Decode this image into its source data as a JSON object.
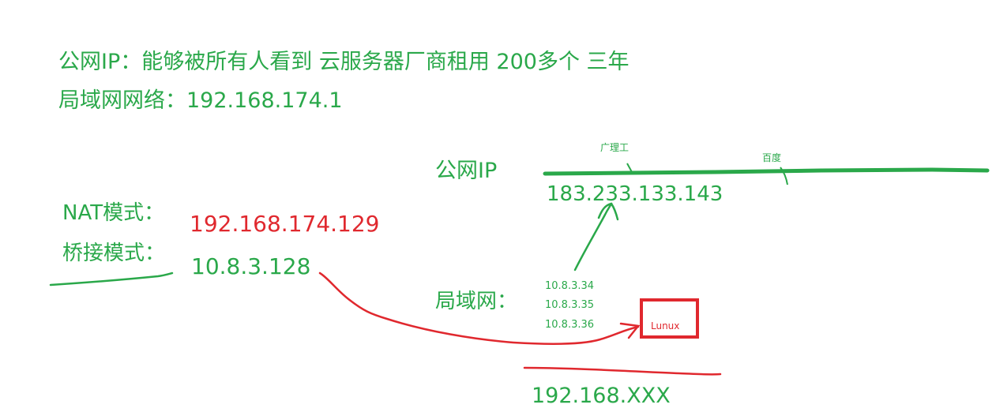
{
  "notes": {
    "line1": "公网IP：能够被所有人看到   云服务器厂商租用 200多个 三年",
    "line2": "局域网网络：192.168.174.1"
  },
  "modes": {
    "nat_label": "NAT模式：",
    "nat_ip": "192.168.174.129",
    "bridge_label": "桥接模式：",
    "bridge_ip": "10.8.3.128"
  },
  "public": {
    "label": "公网IP",
    "ip": "183.233.133.143",
    "node_a": "广理工",
    "node_b": "百度"
  },
  "lan": {
    "label": "局域网：",
    "ips": [
      "10.8.3.34",
      "10.8.3.35",
      "10.8.3.36"
    ],
    "box_label": "Lunux",
    "subnet": "192.168.XXX"
  },
  "colors": {
    "green": "#2aa84a",
    "red": "#e0282e"
  }
}
